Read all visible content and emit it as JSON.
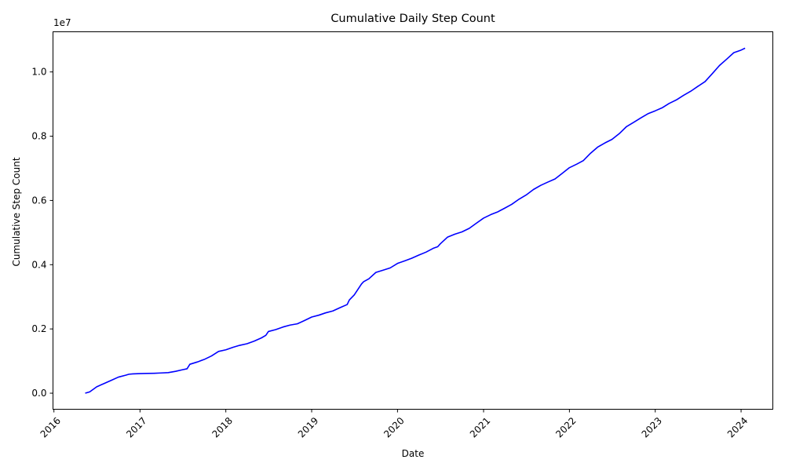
{
  "chart_data": {
    "type": "line",
    "title": "Cumulative Daily Step Count",
    "xlabel": "Date",
    "ylabel": "Cumulative Step Count",
    "y_offset_label": "1e7",
    "x_ticks": [
      "2016",
      "2017",
      "2018",
      "2019",
      "2020",
      "2021",
      "2022",
      "2023",
      "2024"
    ],
    "y_ticks": [
      "0.0",
      "0.2",
      "0.4",
      "0.6",
      "0.8",
      "1.0"
    ],
    "xlim": [
      "2015-12-28",
      "2024-05-15"
    ],
    "ylim": [
      -500000,
      11250000
    ],
    "grid": false,
    "legend": "none",
    "line_color": "#0000ff",
    "series": [
      {
        "x": [
          "2016-05-13",
          "2016-06-01",
          "2016-07-01",
          "2016-08-01",
          "2016-09-01",
          "2016-10-01",
          "2016-11-01",
          "2016-11-15",
          "2016-12-01",
          "2017-01-01",
          "2017-02-01",
          "2017-03-01",
          "2017-04-01",
          "2017-05-01",
          "2017-06-01",
          "2017-07-01",
          "2017-07-20",
          "2017-08-01",
          "2017-09-01",
          "2017-10-01",
          "2017-11-01",
          "2017-12-01",
          "2018-01-01",
          "2018-02-01",
          "2018-03-01",
          "2018-04-01",
          "2018-05-01",
          "2018-06-01",
          "2018-06-20",
          "2018-07-01",
          "2018-08-01",
          "2018-09-01",
          "2018-10-01",
          "2018-11-01",
          "2018-12-01",
          "2019-01-01",
          "2019-02-01",
          "2019-03-01",
          "2019-04-01",
          "2019-05-01",
          "2019-06-01",
          "2019-06-10",
          "2019-07-01",
          "2019-08-01",
          "2019-08-10",
          "2019-09-01",
          "2019-10-01",
          "2019-11-01",
          "2019-12-01",
          "2020-01-01",
          "2020-02-01",
          "2020-03-01",
          "2020-04-01",
          "2020-05-01",
          "2020-06-01",
          "2020-06-20",
          "2020-07-01",
          "2020-08-01",
          "2020-09-01",
          "2020-10-01",
          "2020-11-01",
          "2020-12-01",
          "2021-01-01",
          "2021-02-01",
          "2021-03-01",
          "2021-04-01",
          "2021-05-01",
          "2021-06-01",
          "2021-07-01",
          "2021-08-01",
          "2021-09-01",
          "2021-10-01",
          "2021-11-01",
          "2021-12-01",
          "2022-01-01",
          "2022-02-01",
          "2022-03-01",
          "2022-04-01",
          "2022-05-01",
          "2022-06-01",
          "2022-07-01",
          "2022-08-01",
          "2022-09-01",
          "2022-10-01",
          "2022-11-01",
          "2022-12-01",
          "2023-01-01",
          "2023-02-01",
          "2023-03-01",
          "2023-04-01",
          "2023-05-01",
          "2023-06-01",
          "2023-07-01",
          "2023-08-01",
          "2023-09-01",
          "2023-10-01",
          "2023-11-01",
          "2023-12-01",
          "2024-01-01",
          "2024-01-18"
        ],
        "y": [
          0,
          40000,
          200000,
          300000,
          400000,
          500000,
          560000,
          590000,
          600000,
          610000,
          615000,
          620000,
          630000,
          640000,
          680000,
          730000,
          760000,
          900000,
          970000,
          1050000,
          1160000,
          1300000,
          1350000,
          1430000,
          1490000,
          1540000,
          1620000,
          1720000,
          1800000,
          1920000,
          1980000,
          2060000,
          2120000,
          2160000,
          2260000,
          2370000,
          2430000,
          2500000,
          2560000,
          2660000,
          2760000,
          2900000,
          3060000,
          3400000,
          3470000,
          3560000,
          3760000,
          3830000,
          3900000,
          4040000,
          4120000,
          4200000,
          4300000,
          4390000,
          4510000,
          4560000,
          4650000,
          4860000,
          4950000,
          5020000,
          5130000,
          5290000,
          5450000,
          5560000,
          5640000,
          5760000,
          5880000,
          6040000,
          6170000,
          6340000,
          6470000,
          6570000,
          6670000,
          6840000,
          7020000,
          7130000,
          7240000,
          7470000,
          7660000,
          7790000,
          7900000,
          8080000,
          8300000,
          8430000,
          8570000,
          8700000,
          8790000,
          8890000,
          9020000,
          9130000,
          9270000,
          9400000,
          9550000,
          9700000,
          9950000,
          10200000,
          10400000,
          10600000,
          10680000,
          10740000
        ]
      }
    ]
  }
}
